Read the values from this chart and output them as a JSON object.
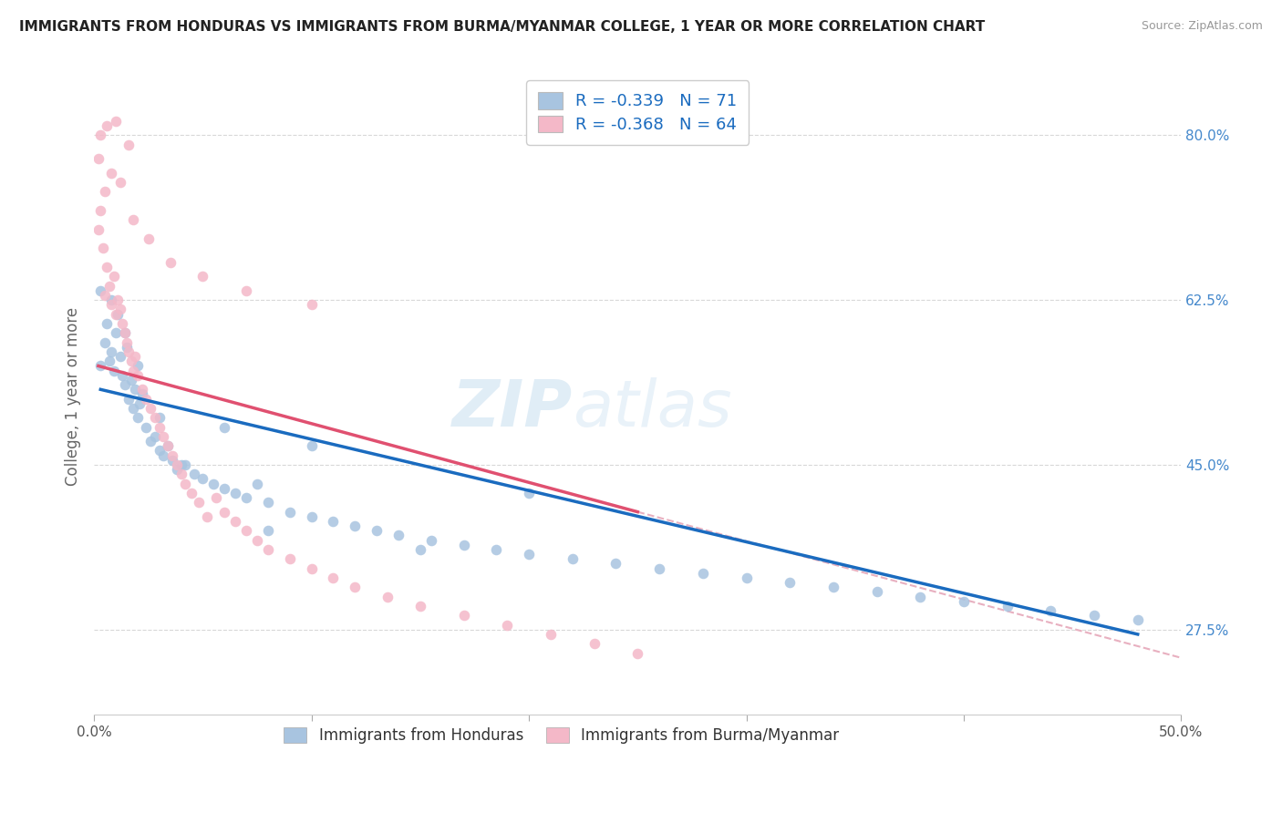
{
  "title": "IMMIGRANTS FROM HONDURAS VS IMMIGRANTS FROM BURMA/MYANMAR COLLEGE, 1 YEAR OR MORE CORRELATION CHART",
  "source": "Source: ZipAtlas.com",
  "ylabel": "College, 1 year or more",
  "yticks_labels": [
    "80.0%",
    "62.5%",
    "45.0%",
    "27.5%"
  ],
  "ytick_vals": [
    0.8,
    0.625,
    0.45,
    0.275
  ],
  "xlim": [
    0.0,
    0.5
  ],
  "ylim": [
    0.185,
    0.86
  ],
  "legend1_R": "-0.339",
  "legend1_N": "71",
  "legend2_R": "-0.368",
  "legend2_N": "64",
  "color_honduras": "#a8c4e0",
  "color_burma": "#f4b8c8",
  "color_line_honduras": "#1a6bbf",
  "color_line_burma": "#e05070",
  "color_line_dashed": "#e8b0c0",
  "color_ytick": "#4488cc",
  "watermark_zip": "ZIP",
  "watermark_atlas": "atlas",
  "legend_labels": [
    "Immigrants from Honduras",
    "Immigrants from Burma/Myanmar"
  ],
  "honduras_scatter_x": [
    0.003,
    0.005,
    0.006,
    0.007,
    0.008,
    0.009,
    0.01,
    0.011,
    0.012,
    0.013,
    0.014,
    0.015,
    0.016,
    0.017,
    0.018,
    0.019,
    0.02,
    0.021,
    0.022,
    0.024,
    0.026,
    0.028,
    0.03,
    0.032,
    0.034,
    0.036,
    0.038,
    0.042,
    0.046,
    0.05,
    0.055,
    0.06,
    0.065,
    0.07,
    0.075,
    0.08,
    0.09,
    0.1,
    0.11,
    0.12,
    0.13,
    0.14,
    0.155,
    0.17,
    0.185,
    0.2,
    0.22,
    0.24,
    0.26,
    0.28,
    0.3,
    0.32,
    0.34,
    0.36,
    0.38,
    0.4,
    0.42,
    0.44,
    0.46,
    0.48,
    0.003,
    0.008,
    0.014,
    0.02,
    0.03,
    0.04,
    0.06,
    0.08,
    0.1,
    0.15,
    0.2
  ],
  "honduras_scatter_y": [
    0.555,
    0.58,
    0.6,
    0.56,
    0.57,
    0.55,
    0.59,
    0.61,
    0.565,
    0.545,
    0.535,
    0.575,
    0.52,
    0.54,
    0.51,
    0.53,
    0.5,
    0.515,
    0.525,
    0.49,
    0.475,
    0.48,
    0.465,
    0.46,
    0.47,
    0.455,
    0.445,
    0.45,
    0.44,
    0.435,
    0.43,
    0.425,
    0.42,
    0.415,
    0.43,
    0.41,
    0.4,
    0.395,
    0.39,
    0.385,
    0.38,
    0.375,
    0.37,
    0.365,
    0.36,
    0.355,
    0.35,
    0.345,
    0.34,
    0.335,
    0.33,
    0.325,
    0.32,
    0.315,
    0.31,
    0.305,
    0.3,
    0.295,
    0.29,
    0.285,
    0.635,
    0.625,
    0.59,
    0.555,
    0.5,
    0.45,
    0.49,
    0.38,
    0.47,
    0.36,
    0.42
  ],
  "burma_scatter_x": [
    0.002,
    0.003,
    0.004,
    0.005,
    0.006,
    0.007,
    0.008,
    0.009,
    0.01,
    0.011,
    0.012,
    0.013,
    0.014,
    0.015,
    0.016,
    0.017,
    0.018,
    0.019,
    0.02,
    0.022,
    0.024,
    0.026,
    0.028,
    0.03,
    0.032,
    0.034,
    0.036,
    0.038,
    0.04,
    0.042,
    0.045,
    0.048,
    0.052,
    0.056,
    0.06,
    0.065,
    0.07,
    0.075,
    0.08,
    0.09,
    0.1,
    0.11,
    0.12,
    0.135,
    0.15,
    0.17,
    0.19,
    0.21,
    0.23,
    0.25,
    0.002,
    0.005,
    0.008,
    0.012,
    0.018,
    0.025,
    0.035,
    0.05,
    0.07,
    0.1,
    0.003,
    0.006,
    0.01,
    0.016
  ],
  "burma_scatter_y": [
    0.7,
    0.72,
    0.68,
    0.63,
    0.66,
    0.64,
    0.62,
    0.65,
    0.61,
    0.625,
    0.615,
    0.6,
    0.59,
    0.58,
    0.57,
    0.56,
    0.55,
    0.565,
    0.545,
    0.53,
    0.52,
    0.51,
    0.5,
    0.49,
    0.48,
    0.47,
    0.46,
    0.45,
    0.44,
    0.43,
    0.42,
    0.41,
    0.395,
    0.415,
    0.4,
    0.39,
    0.38,
    0.37,
    0.36,
    0.35,
    0.34,
    0.33,
    0.32,
    0.31,
    0.3,
    0.29,
    0.28,
    0.27,
    0.26,
    0.25,
    0.775,
    0.74,
    0.76,
    0.75,
    0.71,
    0.69,
    0.665,
    0.65,
    0.635,
    0.62,
    0.8,
    0.81,
    0.815,
    0.79
  ],
  "honduras_line_x": [
    0.003,
    0.48
  ],
  "honduras_line_y": [
    0.53,
    0.27
  ],
  "burma_line_x": [
    0.002,
    0.25
  ],
  "burma_line_y": [
    0.555,
    0.4
  ],
  "dashed_line_x": [
    0.25,
    0.5
  ],
  "dashed_line_y": [
    0.4,
    0.245
  ]
}
